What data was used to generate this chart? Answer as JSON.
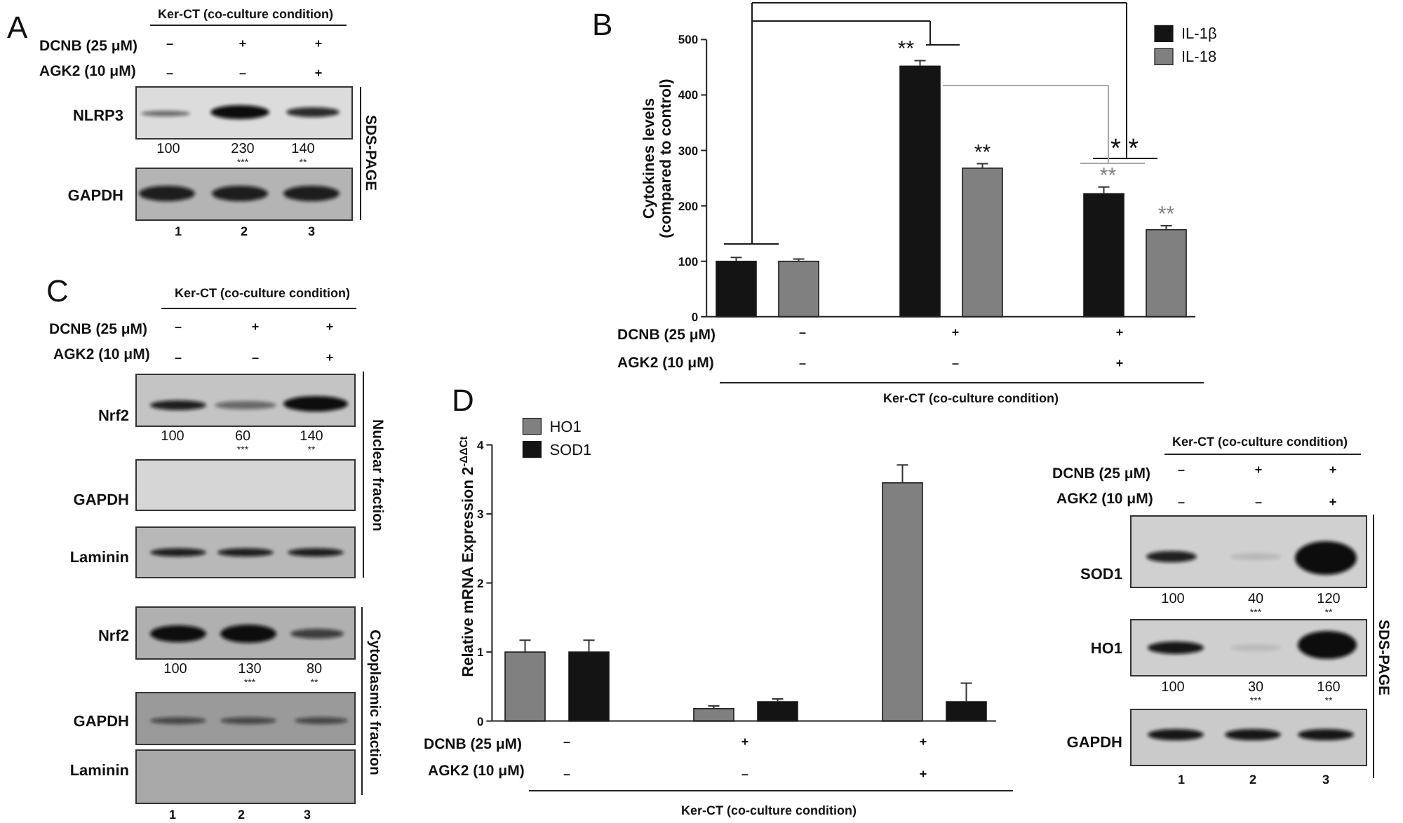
{
  "chart_data": [
    {
      "type": "other",
      "title": "A",
      "annotations": [
        "Ker-CT (co-culture condition)",
        "DCNB (25 μM)",
        "–",
        "+",
        "+",
        "AGK2 (10 μM)",
        "–",
        "–",
        "+",
        "NLRP3",
        "100",
        "230",
        "140",
        "***",
        "**",
        "GAPDH",
        "1",
        "2",
        "3",
        "SDS-PAGE"
      ]
    },
    {
      "type": "bar",
      "title": "B",
      "ylabel": "Cytokines levels\n(compared to control)",
      "categories": [
        null,
        null,
        null
      ],
      "series": [
        {
          "name": "IL-1β",
          "color": "#141414",
          "values": [
            100,
            452,
            222
          ],
          "errors": [
            7,
            10,
            12
          ]
        },
        {
          "name": "IL-18",
          "color": "#808080",
          "values": [
            100,
            268,
            157
          ],
          "errors": [
            4,
            8,
            7
          ]
        }
      ],
      "ylim": [
        0,
        500
      ],
      "yticks": [
        0,
        100,
        200,
        300,
        400,
        500
      ],
      "legend": "top right",
      "annotations": [
        "DCNB (25 μM)",
        "–",
        "+",
        "+",
        "AGK2 (10 μM)",
        "–",
        "–",
        "+",
        "Ker-CT (co-culture condition)",
        "**",
        "**",
        "**",
        "**",
        "* *"
      ]
    },
    {
      "type": "other",
      "title": "C",
      "annotations": [
        "Ker-CT (co-culture condition)",
        "DCNB (25 μM)",
        "–",
        "+",
        "+",
        "AGK2 (10 μM)",
        "–",
        "–",
        "+",
        "Nrf2",
        "100",
        "60",
        "140",
        "***",
        "**",
        "GAPDH",
        "Laminin",
        "Nuclear fraction",
        "Nrf2",
        "100",
        "130",
        "80",
        "***",
        "**",
        "GAPDH",
        "Laminin",
        "Cytoplasmic fraction",
        "1",
        "2",
        "3"
      ]
    },
    {
      "type": "bar",
      "title": "D",
      "ylabel": "Relative mRNA Expression 2$^{-ΔΔCt}$",
      "categories": [
        null,
        null,
        null
      ],
      "series": [
        {
          "name": "HO1",
          "color": "#808080",
          "values": [
            1,
            0.18,
            3.45
          ],
          "errors": [
            0.17,
            0.04,
            0.26
          ]
        },
        {
          "name": "SOD1",
          "color": "#141414",
          "values": [
            1,
            0.28,
            0.28
          ],
          "errors": [
            0.17,
            0.04,
            0.27
          ]
        }
      ],
      "ylim": [
        0,
        4
      ],
      "yticks": [
        0,
        1,
        2,
        3,
        4
      ],
      "legend": "top left",
      "annotations": [
        "DCNB (25 μM)",
        "–",
        "+",
        "+",
        "AGK2 (10 μM)",
        "–",
        "–",
        "+",
        "Ker-CT (co-culture condition)"
      ]
    },
    {
      "type": "other",
      "annotations": [
        "Ker-CT (co-culture condition)",
        "DCNB (25 μM)",
        "–",
        "+",
        "+",
        "AGK2 (10 μM)",
        "–",
        "–",
        "+",
        "SOD1",
        "100",
        "40",
        "120",
        "***",
        "**",
        "HO1",
        "100",
        "30",
        "160",
        "***",
        "**",
        "GAPDH",
        "1",
        "2",
        "3",
        "SDS-PAGE"
      ]
    }
  ]
}
